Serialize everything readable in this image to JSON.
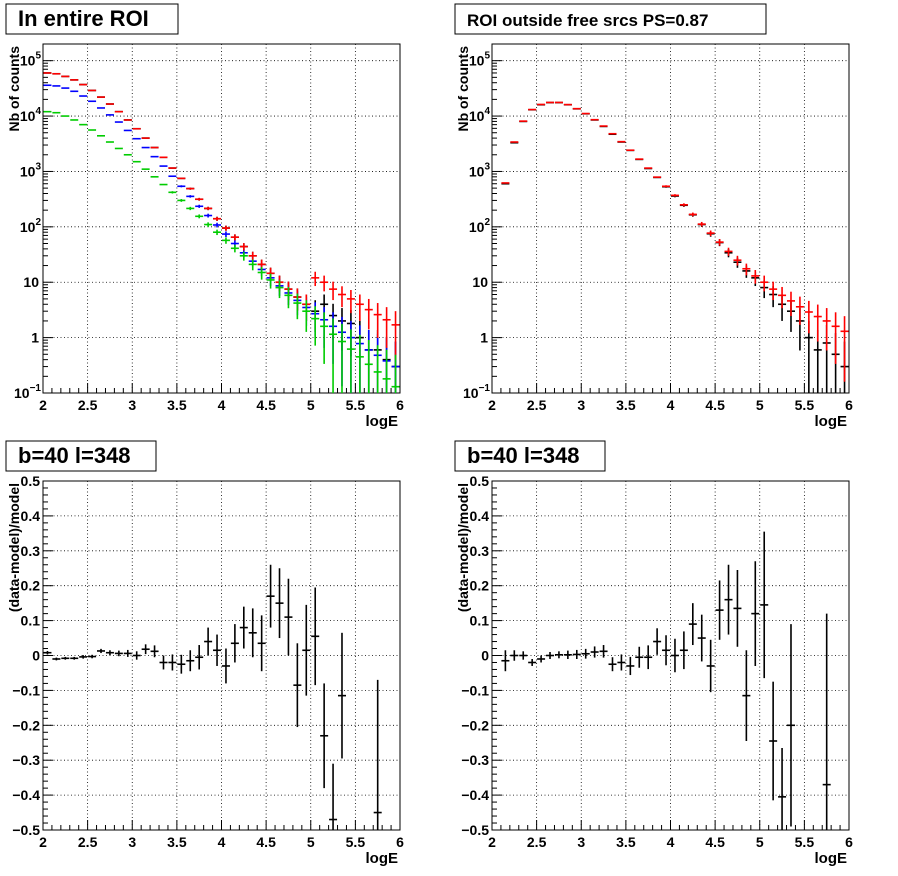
{
  "chart_data": [
    {
      "type": "scatter",
      "title": "In entire ROI",
      "xlabel": "logE",
      "ylabel": "Nb of counts",
      "xlim": [
        2,
        6
      ],
      "ylim": [
        0.1,
        200000
      ],
      "yscale": "log",
      "grid": true,
      "xticks": [
        "2",
        "2.5",
        "3",
        "3.5",
        "4",
        "4.5",
        "5",
        "5.5",
        "6"
      ],
      "yticks": [
        {
          "label": "10",
          "sup": "−1"
        },
        {
          "label": "1",
          "sup": ""
        },
        {
          "label": "10",
          "sup": ""
        },
        {
          "label": "10",
          "sup": "2"
        },
        {
          "label": "10",
          "sup": "3"
        },
        {
          "label": "10",
          "sup": "4"
        },
        {
          "label": "10",
          "sup": "5"
        }
      ],
      "series": [
        {
          "color": "#000000",
          "x": [
            2.05,
            2.15,
            2.25,
            2.35,
            2.45,
            2.55,
            2.65,
            2.75,
            2.85,
            2.95,
            3.05,
            3.15,
            3.25,
            3.35,
            3.45,
            3.55,
            3.65,
            3.75,
            3.85,
            3.95,
            4.05,
            4.15,
            4.25,
            4.35,
            4.45,
            4.55,
            4.65,
            4.75,
            4.85,
            4.95,
            5.05,
            5.15,
            5.25,
            5.35,
            5.45,
            5.55,
            5.65,
            5.75,
            5.85,
            5.95
          ],
          "y": [
            60000,
            58000,
            52000,
            45000,
            37000,
            29000,
            22000,
            16500,
            12000,
            8500,
            5900,
            4000,
            2700,
            1800,
            1150,
            750,
            490,
            315,
            215,
            140,
            95,
            65,
            44,
            30,
            21,
            14.5,
            10,
            7.5,
            5.4,
            4,
            3,
            4,
            2.5,
            2,
            1.8,
            1,
            0.6,
            0.6,
            0.4,
            0.3
          ]
        },
        {
          "color": "#0000ff",
          "x": [
            2.05,
            2.15,
            2.25,
            2.35,
            2.45,
            2.55,
            2.65,
            2.75,
            2.85,
            2.95,
            3.05,
            3.15,
            3.25,
            3.35,
            3.45,
            3.55,
            3.65,
            3.75,
            3.85,
            3.95,
            4.05,
            4.15,
            4.25,
            4.35,
            4.45,
            4.55,
            4.65,
            4.75,
            4.85,
            4.95,
            5.05,
            5.15,
            5.25,
            5.35,
            5.45,
            5.55,
            5.65,
            5.75,
            5.85,
            5.95
          ],
          "y": [
            36000,
            35000,
            32000,
            28000,
            23000,
            18500,
            14000,
            10500,
            7800,
            5500,
            3900,
            2700,
            1850,
            1250,
            820,
            540,
            355,
            235,
            160,
            108,
            74,
            50,
            34,
            24,
            17,
            12,
            8.6,
            6.4,
            4.7,
            3.5,
            2.7,
            2.1,
            1.6,
            1.25,
            1,
            0.78,
            0.6,
            0.48,
            0.38,
            0.3
          ]
        },
        {
          "color": "#ff0000",
          "x": [
            2.05,
            2.15,
            2.25,
            2.35,
            2.45,
            2.55,
            2.65,
            2.75,
            2.85,
            2.95,
            3.05,
            3.15,
            3.25,
            3.35,
            3.45,
            3.55,
            3.65,
            3.75,
            3.85,
            3.95,
            4.05,
            4.15,
            4.25,
            4.35,
            4.45,
            4.55,
            4.65,
            4.75,
            4.85,
            4.95,
            5.05,
            5.15,
            5.25,
            5.35,
            5.45,
            5.55,
            5.65,
            5.75,
            5.85,
            5.95
          ],
          "y": [
            60000,
            58000,
            52000,
            45000,
            37000,
            29000,
            22000,
            16500,
            12000,
            8500,
            5900,
            4000,
            2700,
            1800,
            1150,
            750,
            490,
            315,
            215,
            140,
            95,
            65,
            44,
            30,
            21,
            14.5,
            10,
            7.5,
            5.4,
            4,
            12,
            10,
            7.5,
            6,
            5,
            4,
            3.2,
            2.6,
            2.1,
            1.7
          ]
        },
        {
          "color": "#00cc00",
          "x": [
            2.05,
            2.15,
            2.25,
            2.35,
            2.45,
            2.55,
            2.65,
            2.75,
            2.85,
            2.95,
            3.05,
            3.15,
            3.25,
            3.35,
            3.45,
            3.55,
            3.65,
            3.75,
            3.85,
            3.95,
            4.05,
            4.15,
            4.25,
            4.35,
            4.45,
            4.55,
            4.65,
            4.75,
            4.85,
            4.95,
            5.05,
            5.15,
            5.25,
            5.35,
            5.45,
            5.55,
            5.65,
            5.75,
            5.85,
            5.95
          ],
          "y": [
            12000,
            11500,
            10000,
            8500,
            7000,
            5600,
            4400,
            3400,
            2600,
            2000,
            1500,
            1100,
            800,
            580,
            420,
            300,
            215,
            155,
            110,
            80,
            57,
            41,
            30,
            21,
            15,
            11,
            8,
            5.8,
            4.2,
            3,
            2.2,
            1.6,
            1.15,
            0.85,
            0.62,
            0.45,
            0.33,
            0.24,
            0.18,
            0.13
          ]
        }
      ]
    },
    {
      "type": "scatter",
      "title": "ROI outside free srcs PS=0.87",
      "xlabel": "logE",
      "ylabel": "Nb of counts",
      "xlim": [
        2,
        6
      ],
      "ylim": [
        0.1,
        200000
      ],
      "yscale": "log",
      "grid": true,
      "xticks": [
        "2",
        "2.5",
        "3",
        "3.5",
        "4",
        "4.5",
        "5",
        "5.5",
        "6"
      ],
      "yticks": [
        {
          "label": "10",
          "sup": "−1"
        },
        {
          "label": "1",
          "sup": ""
        },
        {
          "label": "10",
          "sup": ""
        },
        {
          "label": "10",
          "sup": "2"
        },
        {
          "label": "10",
          "sup": "3"
        },
        {
          "label": "10",
          "sup": "4"
        },
        {
          "label": "10",
          "sup": "5"
        }
      ],
      "series": [
        {
          "color": "#000000",
          "x": [
            2.15,
            2.25,
            2.35,
            2.45,
            2.55,
            2.65,
            2.75,
            2.85,
            2.95,
            3.05,
            3.15,
            3.25,
            3.35,
            3.45,
            3.55,
            3.65,
            3.75,
            3.85,
            3.95,
            4.05,
            4.15,
            4.25,
            4.35,
            4.45,
            4.55,
            4.65,
            4.75,
            4.85,
            4.95,
            5.05,
            5.15,
            5.25,
            5.35,
            5.45,
            5.55,
            5.65,
            5.75,
            5.85,
            5.95
          ],
          "y": [
            600,
            3300,
            8000,
            13000,
            16000,
            17500,
            17500,
            16000,
            13500,
            11000,
            8500,
            6500,
            4700,
            3400,
            2400,
            1650,
            1130,
            780,
            530,
            360,
            245,
            165,
            110,
            75,
            52,
            34,
            23,
            16,
            12,
            8,
            6,
            4,
            3,
            2,
            1,
            0.6,
            0.8,
            0.5,
            0.3
          ]
        },
        {
          "color": "#ff0000",
          "x": [
            2.15,
            2.25,
            2.35,
            2.45,
            2.55,
            2.65,
            2.75,
            2.85,
            2.95,
            3.05,
            3.15,
            3.25,
            3.35,
            3.45,
            3.55,
            3.65,
            3.75,
            3.85,
            3.95,
            4.05,
            4.15,
            4.25,
            4.35,
            4.45,
            4.55,
            4.65,
            4.75,
            4.85,
            4.95,
            5.05,
            5.15,
            5.25,
            5.35,
            5.45,
            5.55,
            5.65,
            5.75,
            5.85,
            5.95
          ],
          "y": [
            620,
            3400,
            8100,
            13100,
            16200,
            17600,
            17600,
            16100,
            13600,
            11100,
            8600,
            6600,
            4800,
            3450,
            2420,
            1670,
            1150,
            790,
            540,
            370,
            250,
            168,
            112,
            77,
            53,
            36,
            25,
            17.5,
            13,
            10,
            7.5,
            5.8,
            4.6,
            3.6,
            2.9,
            2.4,
            2,
            1.6,
            1.3
          ]
        }
      ]
    },
    {
      "type": "scatter",
      "title": "b=40 l=348",
      "xlabel": "logE",
      "ylabel": "(data-model)/model",
      "xlim": [
        2,
        6
      ],
      "ylim": [
        -0.5,
        0.5
      ],
      "grid": true,
      "xticks": [
        "2",
        "2.5",
        "3",
        "3.5",
        "4",
        "4.5",
        "5",
        "5.5",
        "6"
      ],
      "yticks": [
        "−0.5",
        "−0.4",
        "−0.3",
        "−0.2",
        "−0.1",
        "0",
        "0.1",
        "0.2",
        "0.3",
        "0.4",
        "0.5"
      ],
      "series": [
        {
          "color": "#000000",
          "x": [
            2.05,
            2.15,
            2.25,
            2.35,
            2.45,
            2.55,
            2.65,
            2.75,
            2.85,
            2.95,
            3.05,
            3.15,
            3.25,
            3.35,
            3.45,
            3.55,
            3.65,
            3.75,
            3.85,
            3.95,
            4.05,
            4.15,
            4.25,
            4.35,
            4.45,
            4.55,
            4.65,
            4.75,
            4.85,
            4.95,
            5.05,
            5.15,
            5.25,
            5.35,
            5.45,
            5.55,
            5.75
          ],
          "y": [
            0.008,
            -0.01,
            -0.008,
            -0.008,
            -0.004,
            -0.003,
            0.013,
            0.008,
            0.006,
            0.006,
            0.0,
            0.018,
            0.012,
            -0.02,
            -0.02,
            -0.025,
            -0.015,
            -0.005,
            0.04,
            0.015,
            -0.03,
            0.035,
            0.08,
            0.065,
            0.035,
            0.17,
            0.15,
            0.11,
            -0.085,
            0.015,
            0.055,
            -0.23,
            -0.47,
            -0.115,
            0.0,
            0.0,
            -0.45
          ],
          "err": [
            0.005,
            0.004,
            0.004,
            0.004,
            0.005,
            0.005,
            0.006,
            0.007,
            0.008,
            0.01,
            0.012,
            0.014,
            0.017,
            0.02,
            0.023,
            0.027,
            0.03,
            0.035,
            0.04,
            0.045,
            0.05,
            0.055,
            0.06,
            0.07,
            0.08,
            0.09,
            0.1,
            0.11,
            0.12,
            0.13,
            0.14,
            0.15,
            0.16,
            0.18,
            0.0,
            0.0,
            0.38
          ]
        }
      ]
    },
    {
      "type": "scatter",
      "title": "b=40 l=348",
      "xlabel": "logE",
      "ylabel": "(data-model)/model",
      "xlim": [
        2,
        6
      ],
      "ylim": [
        -0.5,
        0.5
      ],
      "grid": true,
      "xticks": [
        "2",
        "2.5",
        "3",
        "3.5",
        "4",
        "4.5",
        "5",
        "5.5",
        "6"
      ],
      "yticks": [
        "−0.5",
        "−0.4",
        "−0.3",
        "−0.2",
        "−0.1",
        "0",
        "0.1",
        "0.2",
        "0.3",
        "0.4",
        "0.5"
      ],
      "series": [
        {
          "color": "#000000",
          "x": [
            2.15,
            2.25,
            2.35,
            2.45,
            2.55,
            2.65,
            2.75,
            2.85,
            2.95,
            3.05,
            3.15,
            3.25,
            3.35,
            3.45,
            3.55,
            3.65,
            3.75,
            3.85,
            3.95,
            4.05,
            4.15,
            4.25,
            4.35,
            4.45,
            4.55,
            4.65,
            4.75,
            4.85,
            4.95,
            5.05,
            5.15,
            5.25,
            5.35,
            5.75
          ],
          "y": [
            -0.015,
            0.0,
            0.0,
            -0.02,
            -0.01,
            0.0,
            0.002,
            0.002,
            0.003,
            0.005,
            0.01,
            0.012,
            -0.025,
            -0.02,
            -0.03,
            -0.005,
            -0.005,
            0.04,
            0.015,
            0.0,
            0.015,
            0.09,
            0.05,
            -0.03,
            0.13,
            0.16,
            0.135,
            -0.115,
            0.12,
            0.145,
            -0.245,
            -0.405,
            -0.2,
            -0.37
          ],
          "err": [
            0.03,
            0.015,
            0.012,
            0.01,
            0.01,
            0.01,
            0.01,
            0.012,
            0.013,
            0.014,
            0.016,
            0.018,
            0.02,
            0.023,
            0.026,
            0.03,
            0.034,
            0.038,
            0.043,
            0.048,
            0.054,
            0.06,
            0.067,
            0.075,
            0.085,
            0.1,
            0.11,
            0.13,
            0.15,
            0.21,
            0.17,
            0.14,
            0.29,
            0.49
          ]
        }
      ]
    }
  ]
}
